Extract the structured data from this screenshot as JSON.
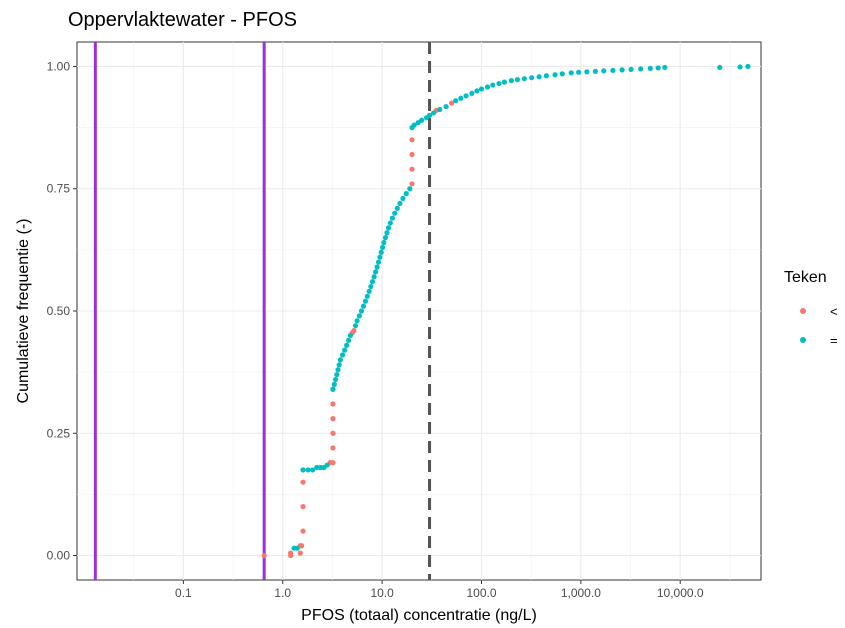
{
  "chart_data": {
    "type": "scatter",
    "title": "Oppervlaktewater - PFOS",
    "xlabel": "PFOS (totaal) concentratie (ng/L)",
    "ylabel": "Cumulatieve frequentie (-)",
    "x_scale": "log10",
    "xlim": [
      0.0085,
      65000
    ],
    "ylim": [
      -0.05,
      1.05
    ],
    "x_ticks": [
      {
        "value": 0.1,
        "label": "0.1"
      },
      {
        "value": 1,
        "label": "1.0"
      },
      {
        "value": 10,
        "label": "10.0"
      },
      {
        "value": 100,
        "label": "100.0"
      },
      {
        "value": 1000,
        "label": "1,000.0"
      },
      {
        "value": 10000,
        "label": "10,000.0"
      }
    ],
    "y_ticks": [
      {
        "value": 0,
        "label": "0.00"
      },
      {
        "value": 0.25,
        "label": "0.25"
      },
      {
        "value": 0.5,
        "label": "0.50"
      },
      {
        "value": 0.75,
        "label": "0.75"
      },
      {
        "value": 1,
        "label": "1.00"
      }
    ],
    "grid": true,
    "legend": {
      "title": "Teken",
      "placement": "right",
      "entries": [
        {
          "label": "<",
          "color": "#F8766D"
        },
        {
          "label": "=",
          "color": "#00BFC4"
        }
      ]
    },
    "vertical_lines": [
      {
        "x": 0.013,
        "color": "#9B30D9",
        "style": "solid"
      },
      {
        "x": 0.65,
        "color": "#9B30D9",
        "style": "solid"
      },
      {
        "x": 30,
        "color": "#555555",
        "style": "dashed"
      }
    ],
    "series": [
      {
        "name": "<",
        "color": "#F8766D",
        "points": [
          [
            0.65,
            0.0
          ],
          [
            1.2,
            0.0
          ],
          [
            1.2,
            0.005
          ],
          [
            1.5,
            0.005
          ],
          [
            1.5,
            0.02
          ],
          [
            1.55,
            0.02
          ],
          [
            1.6,
            0.05
          ],
          [
            1.6,
            0.1
          ],
          [
            1.6,
            0.15
          ],
          [
            1.6,
            0.175
          ],
          [
            3.0,
            0.19
          ],
          [
            3.2,
            0.19
          ],
          [
            3.2,
            0.22
          ],
          [
            3.2,
            0.25
          ],
          [
            3.2,
            0.28
          ],
          [
            3.2,
            0.31
          ],
          [
            3.2,
            0.34
          ],
          [
            5.0,
            0.455
          ],
          [
            5.2,
            0.46
          ],
          [
            20,
            0.76
          ],
          [
            20,
            0.79
          ],
          [
            20,
            0.82
          ],
          [
            20,
            0.85
          ],
          [
            20,
            0.875
          ],
          [
            35,
            0.91
          ],
          [
            50,
            0.925
          ]
        ]
      },
      {
        "name": "=",
        "color": "#00BFC4",
        "points": [
          [
            1.3,
            0.015
          ],
          [
            1.4,
            0.015
          ],
          [
            1.6,
            0.175
          ],
          [
            1.8,
            0.175
          ],
          [
            2.0,
            0.175
          ],
          [
            2.2,
            0.18
          ],
          [
            2.4,
            0.18
          ],
          [
            2.6,
            0.18
          ],
          [
            2.8,
            0.185
          ],
          [
            3.2,
            0.34
          ],
          [
            3.3,
            0.35
          ],
          [
            3.4,
            0.36
          ],
          [
            3.5,
            0.37
          ],
          [
            3.6,
            0.38
          ],
          [
            3.7,
            0.39
          ],
          [
            3.8,
            0.4
          ],
          [
            4.0,
            0.41
          ],
          [
            4.2,
            0.42
          ],
          [
            4.4,
            0.43
          ],
          [
            4.6,
            0.44
          ],
          [
            4.8,
            0.45
          ],
          [
            5.4,
            0.47
          ],
          [
            5.6,
            0.48
          ],
          [
            5.9,
            0.49
          ],
          [
            6.2,
            0.5
          ],
          [
            6.5,
            0.51
          ],
          [
            6.8,
            0.52
          ],
          [
            7.1,
            0.53
          ],
          [
            7.4,
            0.54
          ],
          [
            7.7,
            0.55
          ],
          [
            8.0,
            0.56
          ],
          [
            8.3,
            0.57
          ],
          [
            8.6,
            0.58
          ],
          [
            8.9,
            0.59
          ],
          [
            9.2,
            0.6
          ],
          [
            9.5,
            0.61
          ],
          [
            9.8,
            0.62
          ],
          [
            10.1,
            0.63
          ],
          [
            10.4,
            0.64
          ],
          [
            10.8,
            0.65
          ],
          [
            11.2,
            0.66
          ],
          [
            11.6,
            0.67
          ],
          [
            12.1,
            0.68
          ],
          [
            12.7,
            0.69
          ],
          [
            13.4,
            0.7
          ],
          [
            14.2,
            0.71
          ],
          [
            15.1,
            0.72
          ],
          [
            16.2,
            0.73
          ],
          [
            17.5,
            0.74
          ],
          [
            19.0,
            0.75
          ],
          [
            20,
            0.875
          ],
          [
            21,
            0.88
          ],
          [
            23,
            0.885
          ],
          [
            25,
            0.89
          ],
          [
            28,
            0.895
          ],
          [
            30,
            0.9
          ],
          [
            33,
            0.905
          ],
          [
            38,
            0.912
          ],
          [
            44,
            0.918
          ],
          [
            55,
            0.93
          ],
          [
            62,
            0.935
          ],
          [
            70,
            0.94
          ],
          [
            80,
            0.945
          ],
          [
            90,
            0.95
          ],
          [
            100,
            0.954
          ],
          [
            115,
            0.958
          ],
          [
            130,
            0.962
          ],
          [
            150,
            0.965
          ],
          [
            170,
            0.968
          ],
          [
            200,
            0.971
          ],
          [
            230,
            0.973
          ],
          [
            270,
            0.975
          ],
          [
            320,
            0.977
          ],
          [
            380,
            0.979
          ],
          [
            450,
            0.981
          ],
          [
            550,
            0.983
          ],
          [
            650,
            0.985
          ],
          [
            800,
            0.987
          ],
          [
            950,
            0.988
          ],
          [
            1150,
            0.989
          ],
          [
            1400,
            0.99
          ],
          [
            1700,
            0.991
          ],
          [
            2100,
            0.992
          ],
          [
            2600,
            0.993
          ],
          [
            3200,
            0.994
          ],
          [
            4000,
            0.995
          ],
          [
            5000,
            0.996
          ],
          [
            6000,
            0.997
          ],
          [
            7000,
            0.998
          ],
          [
            25000,
            0.998
          ],
          [
            40000,
            0.999
          ],
          [
            48000,
            1.0
          ]
        ]
      }
    ]
  }
}
